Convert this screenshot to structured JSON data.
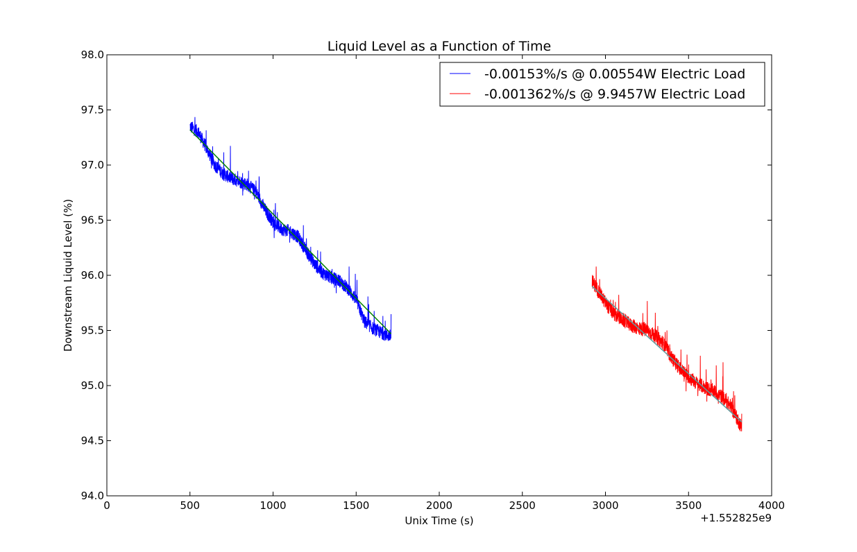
{
  "chart_data": {
    "type": "line",
    "title": "Liquid Level as a Function of Time",
    "xlabel": "Unix Time (s)",
    "ylabel": "Downstream Liquid Level (%)",
    "x_offset_label": "+1.552825e9",
    "xlim": [
      0,
      4000
    ],
    "ylim": [
      94.0,
      98.0
    ],
    "xticks": [
      0,
      500,
      1000,
      1500,
      2000,
      2500,
      3000,
      3500,
      4000
    ],
    "xtick_labels": [
      "0",
      "500",
      "1000",
      "1500",
      "2000",
      "2500",
      "3000",
      "3500",
      "4000"
    ],
    "yticks": [
      94.0,
      94.5,
      95.0,
      95.5,
      96.0,
      96.5,
      97.0,
      97.5,
      98.0
    ],
    "ytick_labels": [
      "94.0",
      "94.5",
      "95.0",
      "95.5",
      "96.0",
      "96.5",
      "97.0",
      "97.5",
      "98.0"
    ],
    "grid": false,
    "legend_position": "top-right",
    "series": [
      {
        "name": "-0.00153%/s @ 0.00554W Electric Load",
        "color": "#0000ff",
        "x_range": [
          500,
          1710
        ],
        "noise_amplitude": 0.12,
        "x": [
          500,
          550,
          600,
          650,
          700,
          750,
          800,
          850,
          900,
          950,
          1000,
          1050,
          1100,
          1150,
          1200,
          1250,
          1300,
          1350,
          1400,
          1450,
          1500,
          1550,
          1600,
          1650,
          1700
        ],
        "y": [
          97.35,
          97.3,
          97.15,
          97.0,
          96.92,
          96.88,
          96.85,
          96.82,
          96.75,
          96.6,
          96.48,
          96.42,
          96.4,
          96.35,
          96.22,
          96.1,
          96.02,
          95.98,
          95.95,
          95.88,
          95.78,
          95.58,
          95.52,
          95.48,
          95.45
        ]
      },
      {
        "name": "-0.001362%/s @ 9.9457W Electric Load",
        "color": "#ff0000",
        "x_range": [
          2920,
          3820
        ],
        "noise_amplitude": 0.13,
        "x": [
          2920,
          2960,
          3000,
          3050,
          3100,
          3150,
          3200,
          3250,
          3300,
          3350,
          3400,
          3450,
          3500,
          3550,
          3600,
          3650,
          3700,
          3750,
          3800,
          3820
        ],
        "y": [
          95.95,
          95.85,
          95.75,
          95.65,
          95.6,
          95.55,
          95.52,
          95.5,
          95.45,
          95.38,
          95.25,
          95.15,
          95.08,
          95.02,
          94.98,
          94.95,
          94.9,
          94.82,
          94.68,
          94.62
        ]
      }
    ],
    "fit_lines": [
      {
        "color": "#008000",
        "x": [
          500,
          1710
        ],
        "y": [
          97.32,
          95.47
        ]
      },
      {
        "color": "#5f9ea0",
        "x": [
          2920,
          3820
        ],
        "y": [
          95.9,
          94.67
        ]
      }
    ]
  }
}
